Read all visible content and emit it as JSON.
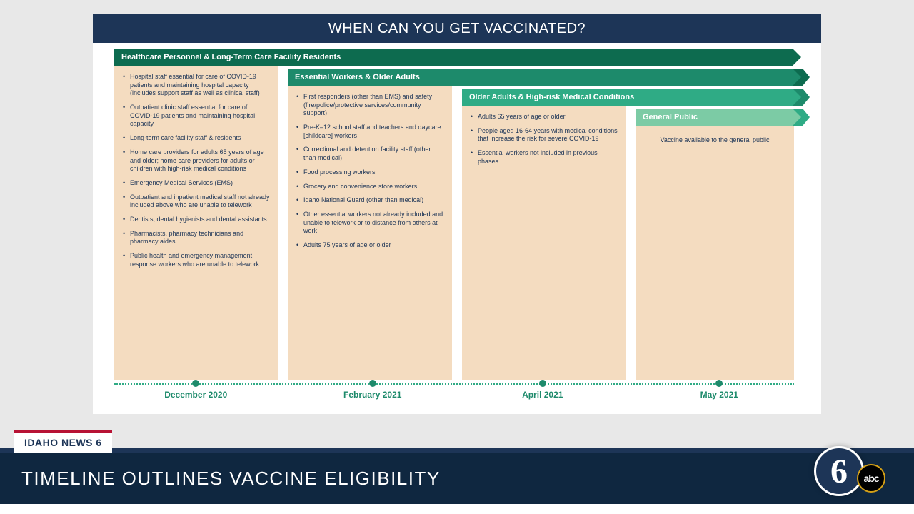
{
  "slide": {
    "title": "WHEN CAN YOU GET VACCINATED?",
    "title_bg_color": "#1d3557",
    "title_text_color": "#ffffff",
    "background_color": "#ffffff",
    "phases": [
      {
        "label": "Healthcare Personnel & Long-Term Care Facility Residents",
        "arrow_color": "#0d6b4f",
        "column_bg": "#f4dcc0",
        "items": [
          "Hospital staff essential for care of COVID-19 patients and maintaining hospital capacity (includes support staff as well as clinical staff)",
          "Outpatient clinic staff essential for care of COVID-19 patients and maintaining hospital capacity",
          "Long-term care facility staff & residents",
          "Home care providers for adults 65 years of age and older; home care providers for adults or children with high-risk medical conditions",
          "Emergency Medical Services (EMS)",
          "Outpatient and inpatient medical staff not already included above who are unable to telework",
          "Dentists, dental hygienists and dental assistants",
          "Pharmacists, pharmacy technicians and pharmacy aides",
          "Public health and emergency management response workers who are unable to telework"
        ],
        "month": "December 2020"
      },
      {
        "label": "Essential Workers & Older Adults",
        "arrow_color": "#1d8a6b",
        "column_bg": "#f4dcc0",
        "items": [
          "First responders (other than EMS) and safety (fire/police/protective services/community support)",
          "Pre-K–12 school staff and teachers and daycare [childcare] workers",
          "Correctional and detention facility staff (other than medical)",
          "Food processing workers",
          "Grocery and convenience store workers",
          "Idaho National Guard (other than medical)",
          "Other essential workers not already included and unable to telework or to distance from others at work",
          "Adults 75 years of age or older"
        ],
        "month": "February 2021"
      },
      {
        "label": "Older Adults & High-risk Medical Conditions",
        "arrow_color": "#2fab85",
        "column_bg": "#f4dcc0",
        "items": [
          "Adults 65 years of age or older",
          "People aged 16-64 years with medical conditions that increase the risk for severe COVID-19",
          "Essential workers not included in previous phases"
        ],
        "month": "April 2021"
      },
      {
        "label": "General Public",
        "arrow_color": "#7ccba5",
        "column_bg": "#f4dcc0",
        "general_text": "Vaccine available to the general public",
        "month": "May 2021"
      }
    ],
    "timeline_dot_color": "#1d8a6b",
    "timeline_line_color": "#2fab85",
    "timeline_label_color": "#1d8a6b",
    "dot_positions_pct": [
      12,
      38,
      63,
      89
    ]
  },
  "lower_third": {
    "channel_tag": "IDAHO NEWS 6",
    "headline": "TIMELINE OUTLINES VACCINE ELIGIBILITY",
    "bar_bg_color": "#0f2740",
    "text_color": "#ffffff",
    "tag_accent_color": "#b71234",
    "logo_6": "6",
    "logo_abc": "abc",
    "logo_bg": "#1d3557",
    "abc_ring_color": "#d4a017"
  }
}
